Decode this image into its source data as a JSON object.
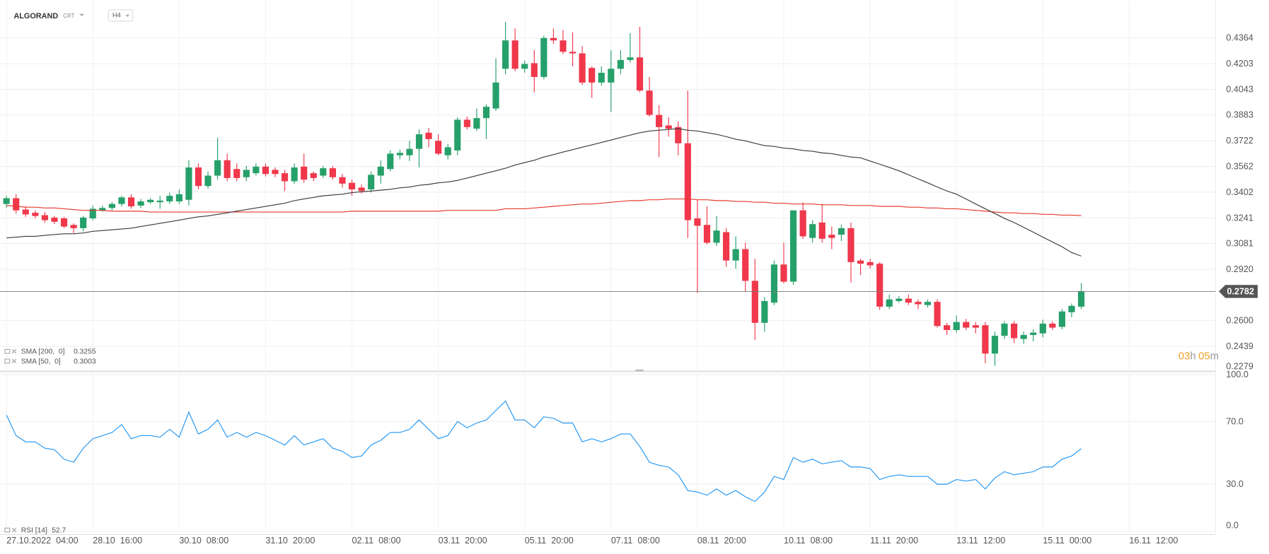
{
  "header": {
    "symbol": "ALGORAND",
    "instrument_type": "CRT",
    "timeframe": "H4"
  },
  "countdown": {
    "hours": "03",
    "hours_unit": "h",
    "minutes": "05",
    "minutes_unit": "m"
  },
  "chart_data": [
    {
      "type": "candlestick",
      "up_color": "#26a06a",
      "down_color": "#f0374b",
      "open": [
        0.3328,
        0.3364,
        0.3293,
        0.3273,
        0.3258,
        0.3243,
        0.3238,
        0.3197,
        0.3177,
        0.3238,
        0.3288,
        0.3303,
        0.3328,
        0.3369,
        0.3318,
        0.3339,
        0.3339,
        0.3344,
        0.3344,
        0.3354,
        0.3556,
        0.344,
        0.3505,
        0.3601,
        0.3546,
        0.3495,
        0.352,
        0.3561,
        0.3541,
        0.352,
        0.347,
        0.3561,
        0.352,
        0.3505,
        0.3551,
        0.3495,
        0.346,
        0.343,
        0.3419,
        0.3505,
        0.3546,
        0.3632,
        0.3632,
        0.3672,
        0.3773,
        0.3722,
        0.3632,
        0.3662,
        0.3854,
        0.3798,
        0.3864,
        0.3924,
        0.4172,
        0.4349,
        0.4172,
        0.4207,
        0.4121,
        0.4364,
        0.4349,
        0.4278,
        0.4268,
        0.4177,
        0.4086,
        0.4086,
        0.4172,
        0.4227,
        0.4243,
        0.4036,
        0.3884,
        0.3818,
        0.3808,
        0.3707,
        0.3238,
        0.3197,
        0.3086,
        0.3152,
        0.2975,
        0.3046,
        0.2848,
        0.2586,
        0.2712,
        0.295,
        0.2843,
        0.3288,
        0.3116,
        0.3212,
        0.3136,
        0.3136,
        0.3177,
        0.2975,
        0.2965,
        0.2955,
        0.2687,
        0.2722,
        0.2737,
        0.2717,
        0.2697,
        0.2717,
        0.2571,
        0.2541,
        0.2591,
        0.2571,
        0.2571,
        0.2394,
        0.2505,
        0.2581,
        0.2485,
        0.251,
        0.252,
        0.2581,
        0.2561,
        0.2652,
        0.2687
      ],
      "high": [
        0.3379,
        0.3389,
        0.3313,
        0.3288,
        0.3278,
        0.3253,
        0.3248,
        0.3207,
        0.3253,
        0.3318,
        0.3318,
        0.3339,
        0.3379,
        0.3389,
        0.3359,
        0.3364,
        0.3379,
        0.3399,
        0.3419,
        0.3601,
        0.3581,
        0.3531,
        0.3743,
        0.3642,
        0.3581,
        0.3566,
        0.3581,
        0.3581,
        0.3556,
        0.3541,
        0.3581,
        0.3642,
        0.3531,
        0.3566,
        0.3566,
        0.3515,
        0.348,
        0.345,
        0.3531,
        0.3601,
        0.3662,
        0.3667,
        0.3722,
        0.3793,
        0.3803,
        0.3763,
        0.3702,
        0.3869,
        0.3874,
        0.3924,
        0.395,
        0.4238,
        0.4465,
        0.4424,
        0.4222,
        0.4288,
        0.4379,
        0.4424,
        0.4414,
        0.4399,
        0.4313,
        0.4187,
        0.4187,
        0.4288,
        0.4288,
        0.4394,
        0.4434,
        0.4121,
        0.3945,
        0.3869,
        0.3843,
        0.4036,
        0.3354,
        0.3313,
        0.3253,
        0.3177,
        0.3126,
        0.3086,
        0.2985,
        0.2747,
        0.2975,
        0.3086,
        0.3288,
        0.3339,
        0.3227,
        0.3328,
        0.3187,
        0.3197,
        0.3212,
        0.2985,
        0.2985,
        0.2965,
        0.2762,
        0.2753,
        0.2762,
        0.2732,
        0.2732,
        0.2732,
        0.2586,
        0.2632,
        0.2611,
        0.2591,
        0.2591,
        0.2531,
        0.2596,
        0.2596,
        0.2531,
        0.2546,
        0.2606,
        0.2596,
        0.2672,
        0.2707,
        0.2834
      ],
      "low": [
        0.3303,
        0.3268,
        0.3248,
        0.3238,
        0.3212,
        0.3202,
        0.3177,
        0.3147,
        0.3157,
        0.3227,
        0.3278,
        0.3288,
        0.3313,
        0.3298,
        0.3303,
        0.3328,
        0.3298,
        0.3328,
        0.3328,
        0.3318,
        0.3419,
        0.3424,
        0.348,
        0.347,
        0.347,
        0.347,
        0.3505,
        0.35,
        0.3495,
        0.3409,
        0.3455,
        0.346,
        0.347,
        0.349,
        0.348,
        0.343,
        0.3379,
        0.3394,
        0.3399,
        0.3455,
        0.3531,
        0.3606,
        0.3596,
        0.3556,
        0.3682,
        0.3632,
        0.3606,
        0.3632,
        0.3793,
        0.3783,
        0.3733,
        0.3909,
        0.4137,
        0.4157,
        0.4147,
        0.4025,
        0.4106,
        0.4328,
        0.4263,
        0.4187,
        0.4071,
        0.399,
        0.4066,
        0.3904,
        0.4137,
        0.4212,
        0.4025,
        0.3874,
        0.3621,
        0.3748,
        0.3632,
        0.3116,
        0.2772,
        0.3076,
        0.3066,
        0.2934,
        0.2924,
        0.2782,
        0.248,
        0.253,
        0.2697,
        0.2833,
        0.2823,
        0.3111,
        0.3086,
        0.3086,
        0.3046,
        0.3096,
        0.2838,
        0.2884,
        0.2924,
        0.2667,
        0.2672,
        0.2712,
        0.2697,
        0.2672,
        0.2682,
        0.2556,
        0.2511,
        0.2525,
        0.2541,
        0.252,
        0.2333,
        0.2318,
        0.2485,
        0.246,
        0.2455,
        0.247,
        0.2495,
        0.2541,
        0.2546,
        0.2621,
        0.2672
      ],
      "close": [
        0.3364,
        0.3288,
        0.3263,
        0.3253,
        0.3227,
        0.3217,
        0.3187,
        0.3177,
        0.3243,
        0.3298,
        0.3303,
        0.3328,
        0.3369,
        0.3313,
        0.3344,
        0.3354,
        0.3349,
        0.3379,
        0.3389,
        0.3556,
        0.344,
        0.3505,
        0.3601,
        0.349,
        0.349,
        0.3541,
        0.3561,
        0.3515,
        0.3515,
        0.347,
        0.3556,
        0.348,
        0.349,
        0.3551,
        0.3495,
        0.3455,
        0.3419,
        0.3409,
        0.351,
        0.3561,
        0.3642,
        0.3647,
        0.3672,
        0.3763,
        0.3733,
        0.3642,
        0.3682,
        0.3854,
        0.3808,
        0.3864,
        0.3935,
        0.4086,
        0.4349,
        0.4172,
        0.4202,
        0.4121,
        0.4364,
        0.4349,
        0.4278,
        0.4268,
        0.4086,
        0.4086,
        0.4147,
        0.4172,
        0.4227,
        0.4243,
        0.4036,
        0.3884,
        0.3808,
        0.3798,
        0.3707,
        0.3227,
        0.3192,
        0.3086,
        0.3162,
        0.2975,
        0.3046,
        0.2848,
        0.2586,
        0.2722,
        0.295,
        0.2843,
        0.3288,
        0.3126,
        0.3202,
        0.3111,
        0.3116,
        0.3177,
        0.2965,
        0.2955,
        0.2945,
        0.2687,
        0.2732,
        0.2737,
        0.2712,
        0.2702,
        0.2717,
        0.2566,
        0.2541,
        0.2591,
        0.2556,
        0.2556,
        0.2394,
        0.2505,
        0.2581,
        0.249,
        0.251,
        0.2525,
        0.2581,
        0.2556,
        0.2657,
        0.2692,
        0.2782
      ],
      "series": [
        {
          "name": "SMA [200,  0]",
          "color": "#e5392e",
          "values": [
            0.3318,
            0.3313,
            0.3308,
            0.3308,
            0.3303,
            0.3303,
            0.3298,
            0.3293,
            0.3288,
            0.3288,
            0.3288,
            0.3283,
            0.3283,
            0.3283,
            0.3283,
            0.3278,
            0.3278,
            0.3278,
            0.3278,
            0.3278,
            0.3278,
            0.3278,
            0.3278,
            0.3278,
            0.3278,
            0.3278,
            0.3278,
            0.3278,
            0.3278,
            0.3278,
            0.3278,
            0.3278,
            0.3278,
            0.3278,
            0.3278,
            0.3278,
            0.3283,
            0.3283,
            0.3283,
            0.3283,
            0.3283,
            0.3283,
            0.3283,
            0.3283,
            0.3283,
            0.3283,
            0.3288,
            0.3288,
            0.3288,
            0.3288,
            0.3288,
            0.3288,
            0.3298,
            0.3298,
            0.3298,
            0.3303,
            0.3308,
            0.3313,
            0.3318,
            0.3323,
            0.3328,
            0.3328,
            0.3333,
            0.3339,
            0.3344,
            0.3349,
            0.3349,
            0.3354,
            0.3354,
            0.3359,
            0.3359,
            0.3359,
            0.3354,
            0.3354,
            0.3349,
            0.3349,
            0.3344,
            0.3344,
            0.3339,
            0.3339,
            0.3333,
            0.3333,
            0.3328,
            0.3328,
            0.3328,
            0.3323,
            0.3323,
            0.3323,
            0.3318,
            0.3318,
            0.3318,
            0.3313,
            0.3313,
            0.3313,
            0.3308,
            0.3308,
            0.3303,
            0.3303,
            0.3298,
            0.3298,
            0.3293,
            0.3288,
            0.3283,
            0.3278,
            0.3273,
            0.3273,
            0.3268,
            0.3268,
            0.3263,
            0.3263,
            0.3258,
            0.3258,
            0.3255
          ]
        },
        {
          "name": "SMA [50,  0]",
          "color": "#3a3a3a",
          "values": [
            0.3116,
            0.3121,
            0.3126,
            0.3126,
            0.3132,
            0.3137,
            0.3142,
            0.3142,
            0.3147,
            0.3157,
            0.3162,
            0.3167,
            0.3172,
            0.3177,
            0.3187,
            0.3197,
            0.3207,
            0.3217,
            0.3227,
            0.3238,
            0.3248,
            0.3253,
            0.3263,
            0.3273,
            0.3283,
            0.3293,
            0.3303,
            0.3313,
            0.3323,
            0.3333,
            0.3349,
            0.3359,
            0.3369,
            0.3379,
            0.3384,
            0.3389,
            0.3399,
            0.3404,
            0.3409,
            0.3414,
            0.3419,
            0.3429,
            0.3434,
            0.3445,
            0.345,
            0.346,
            0.3465,
            0.3475,
            0.349,
            0.3505,
            0.352,
            0.3535,
            0.3551,
            0.3571,
            0.3586,
            0.3601,
            0.3621,
            0.3636,
            0.3652,
            0.3667,
            0.3682,
            0.3697,
            0.3712,
            0.3727,
            0.3743,
            0.3758,
            0.3773,
            0.3783,
            0.3788,
            0.3793,
            0.3798,
            0.3788,
            0.3783,
            0.3773,
            0.3763,
            0.3748,
            0.3732,
            0.3722,
            0.3707,
            0.3692,
            0.3687,
            0.3677,
            0.3672,
            0.3662,
            0.3657,
            0.3647,
            0.3642,
            0.3631,
            0.3621,
            0.3616,
            0.3596,
            0.3576,
            0.3556,
            0.3535,
            0.351,
            0.3485,
            0.346,
            0.3434,
            0.3409,
            0.3389,
            0.3359,
            0.3328,
            0.3298,
            0.3268,
            0.3238,
            0.3212,
            0.3182,
            0.3152,
            0.3121,
            0.3091,
            0.3061,
            0.3025,
            0.3003
          ]
        }
      ],
      "xlim": [
        0,
        126
      ],
      "xticks": [
        {
          "value": 0,
          "label": "27.10.2022  04:00"
        },
        {
          "value": 9,
          "label": "28.10  16:00"
        },
        {
          "value": 18,
          "label": "30.10  08:00"
        },
        {
          "value": 27,
          "label": "31.10  20:00"
        },
        {
          "value": 36,
          "label": "02.11  08:00"
        },
        {
          "value": 45,
          "label": "03.11  20:00"
        },
        {
          "value": 54,
          "label": "05.11  20:00"
        },
        {
          "value": 63,
          "label": "07.11  08:00"
        },
        {
          "value": 72,
          "label": "08.11  20:00"
        },
        {
          "value": 81,
          "label": "10.11  08:00"
        },
        {
          "value": 90,
          "label": "11.11  20:00"
        },
        {
          "value": 99,
          "label": "13.11  12:00"
        },
        {
          "value": 108,
          "label": "15.11  00:00"
        },
        {
          "value": 117,
          "label": "16.11  12:00"
        }
      ],
      "ylim": [
        0.2279,
        0.4525
      ],
      "yticks": [
        0.4364,
        0.4203,
        0.4043,
        0.3883,
        0.3722,
        0.3562,
        0.3402,
        0.3241,
        0.3081,
        {
          "value": 0.292,
          "label": "0.2920"
        },
        {
          "value": 0.26,
          "label": "0.2600"
        },
        0.2439,
        0.2279
      ],
      "grid": true,
      "last_price_line": true
    },
    {
      "type": "line",
      "series": [
        {
          "name": "RSI [14]",
          "color": "#2196f3",
          "values": [
            74,
            61,
            57,
            57,
            53,
            52,
            46,
            44,
            53,
            59,
            61,
            63,
            68,
            59,
            61,
            61,
            60,
            65,
            60,
            76,
            62,
            65,
            71,
            60,
            63,
            60,
            63,
            61,
            58,
            55,
            61,
            55,
            57,
            59,
            53,
            51,
            47,
            48,
            55,
            58,
            63,
            63,
            65,
            71,
            65,
            59,
            61,
            70,
            66,
            69,
            71,
            77,
            83,
            71,
            71,
            66,
            73,
            72,
            69,
            69,
            57,
            59,
            57,
            59,
            62,
            62,
            54,
            44,
            42,
            41,
            36,
            26,
            25,
            23,
            27,
            23,
            26,
            22,
            19,
            25,
            35,
            33,
            47,
            44,
            46,
            43,
            44,
            45,
            41,
            41,
            40,
            33,
            35,
            36,
            35,
            35,
            35,
            30,
            30,
            33,
            32,
            33,
            27,
            34,
            38,
            36,
            37,
            38,
            41,
            41,
            46,
            48,
            52.7
          ]
        }
      ],
      "xlim": [
        0,
        126
      ],
      "ylim": [
        0,
        100
      ],
      "yticks": [
        {
          "value": 100,
          "label": "100.0"
        },
        {
          "value": 70,
          "label": "70.0"
        },
        {
          "value": 30,
          "label": "30.0"
        },
        {
          "value": 0,
          "label": "0.0"
        }
      ],
      "grid": true
    }
  ]
}
